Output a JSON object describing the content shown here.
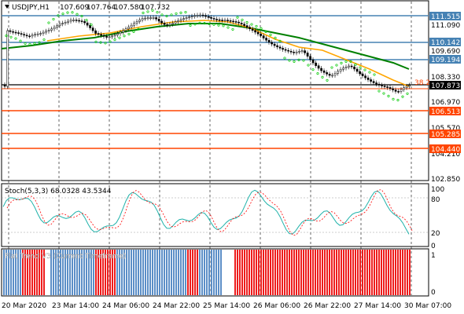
{
  "header": {
    "symbol": "USDJPY,H1",
    "open": "107.609",
    "high": "107.764",
    "low": "107.580",
    "close": "107.732"
  },
  "price_axis": {
    "labels": [
      "111.090",
      "109.690",
      "108.330",
      "106.970",
      "105.570",
      "104.210",
      "102.850"
    ],
    "levels": [
      {
        "value": "111.515",
        "color": "#4682b4"
      },
      {
        "value": "110.142",
        "color": "#4682b4"
      },
      {
        "value": "109.194",
        "color": "#4682b4"
      },
      {
        "value": "107.873",
        "color": "#000000"
      },
      {
        "value": "106.513",
        "color": "#ff4500"
      },
      {
        "value": "105.285",
        "color": "#ff4500"
      },
      {
        "value": "104.440",
        "color": "#ff4500"
      }
    ],
    "line_tag": "38.2"
  },
  "stoch": {
    "title": "Stoch(5,3,3) 68.0328 43.5344",
    "axis_labels": [
      "100",
      "80",
      "20",
      "0"
    ]
  },
  "flat_trend": {
    "title": "Flat Trend V3 (Current Timeframe)",
    "axis_labels": [
      "1",
      "0"
    ],
    "colors": {
      "blue": "#5b8ec7",
      "red": "#ee1c1c",
      "white": "#ffffff"
    }
  },
  "time_axis": {
    "labels": [
      "20 Mar 2020",
      "23 Mar 14:00",
      "24 Mar 06:00",
      "24 Mar 22:00",
      "25 Mar 14:00",
      "26 Mar 06:00",
      "26 Mar 22:00",
      "27 Mar 14:00",
      "30 Mar 07:00"
    ]
  },
  "colors": {
    "bull_candle": "#ffffff",
    "bear_candle": "#000000",
    "ma_fast": "#ffa500",
    "ma_slow": "#008000",
    "psar": "#00c800",
    "stoch_main": "#20b2aa",
    "stoch_signal": "#ff0000"
  }
}
